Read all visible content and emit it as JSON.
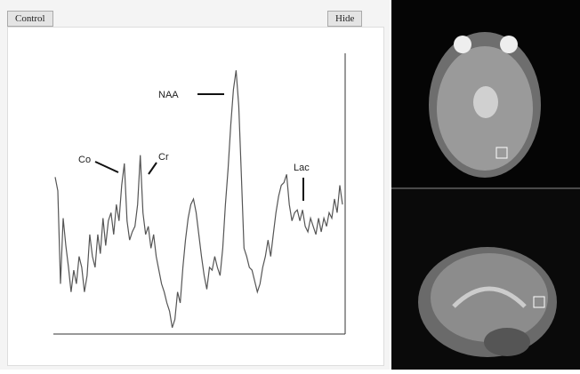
{
  "toolbar": {
    "control": "Control",
    "hide": "Hide"
  },
  "chart_data": {
    "type": "line",
    "annotations": [
      "NAA",
      "Co",
      "Cr",
      "Lac"
    ],
    "color": "#555555",
    "ylim": [
      0,
      100
    ],
    "values": [
      58,
      53,
      19,
      43,
      33,
      25,
      16,
      24,
      19,
      29,
      25,
      16,
      22,
      37,
      29,
      25,
      37,
      30,
      43,
      33,
      42,
      45,
      37,
      48,
      42,
      55,
      63,
      42,
      35,
      38,
      40,
      48,
      66,
      45,
      37,
      40,
      32,
      37,
      29,
      24,
      19,
      16,
      12,
      9,
      3,
      6,
      16,
      12,
      25,
      35,
      43,
      48,
      50,
      45,
      37,
      29,
      22,
      17,
      25,
      24,
      29,
      25,
      22,
      32,
      48,
      61,
      77,
      90,
      97,
      84,
      58,
      32,
      29,
      25,
      24,
      20,
      16,
      19,
      25,
      29,
      35,
      29,
      37,
      45,
      51,
      55,
      56,
      59,
      48,
      42,
      45,
      46,
      42,
      46,
      40,
      38,
      43,
      40,
      37,
      43,
      38,
      43,
      40,
      45,
      43,
      50,
      45,
      55,
      48
    ]
  }
}
